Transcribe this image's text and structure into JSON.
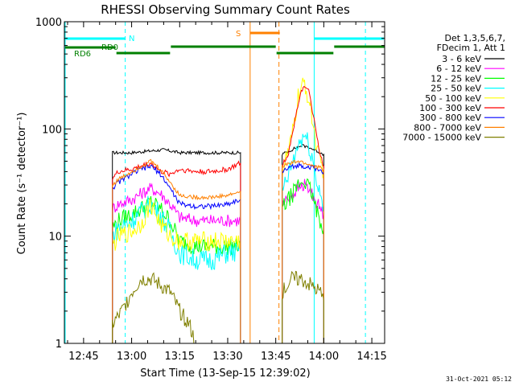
{
  "chart_data": {
    "type": "line",
    "title": "RHESSI Observing Summary Count Rates",
    "xlabel": "Start Time (13-Sep-15 12:39:02)",
    "ylabel": "Count Rate (s⁻¹ detector⁻¹)",
    "y_scale": "log",
    "ylim": [
      1,
      1000
    ],
    "xlim": [
      "12:39",
      "14:19"
    ],
    "x_ticks": [
      "12:45",
      "13:00",
      "13:15",
      "13:30",
      "13:45",
      "14:00",
      "14:15"
    ],
    "y_ticks": [
      "1",
      "10",
      "100",
      "1000"
    ],
    "legend_position": "top-right",
    "legend_header": [
      "Det 1,3,5,6,7,",
      "FDecim 1, Att 1"
    ],
    "generated": "31-Oct-2021 05:12",
    "series": [
      {
        "name": "3 - 6 keV",
        "color": "#000000",
        "x": [
          "12:54",
          "12:55",
          "13:00",
          "13:05",
          "13:10",
          "13:15",
          "13:20",
          "13:25",
          "13:30",
          "13:34"
        ],
        "y": [
          60,
          60,
          60,
          62,
          64,
          60,
          60,
          60,
          60,
          60
        ],
        "x2": [
          "13:47",
          "13:49",
          "13:51",
          "13:53",
          "13:55",
          "13:57",
          "13:59",
          "14:00"
        ],
        "y2": [
          58,
          62,
          66,
          70,
          68,
          64,
          60,
          58
        ]
      },
      {
        "name": "6 - 12 keV",
        "color": "#ff00ff",
        "x": [
          "12:54",
          "12:56",
          "13:00",
          "13:03",
          "13:06",
          "13:09",
          "13:12",
          "13:15",
          "13:20",
          "13:25",
          "13:30",
          "13:34"
        ],
        "y": [
          18,
          20,
          22,
          25,
          28,
          25,
          20,
          15,
          14,
          14,
          14,
          14
        ],
        "x2": [
          "13:47",
          "13:50",
          "13:52",
          "13:54",
          "13:56",
          "13:58",
          "14:00"
        ],
        "y2": [
          20,
          24,
          28,
          30,
          26,
          20,
          16
        ]
      },
      {
        "name": "12 - 25 keV",
        "color": "#00ff00",
        "x": [
          "12:54",
          "12:56",
          "13:00",
          "13:03",
          "13:06",
          "13:09",
          "13:12",
          "13:15",
          "13:20",
          "13:25",
          "13:30",
          "13:34"
        ],
        "y": [
          12,
          14,
          16,
          18,
          21,
          18,
          14,
          9,
          8,
          8,
          8,
          8
        ],
        "x2": [
          "13:47",
          "13:50",
          "13:52",
          "13:54",
          "13:56",
          "13:58",
          "14:00"
        ],
        "y2": [
          18,
          24,
          30,
          33,
          26,
          16,
          12
        ]
      },
      {
        "name": "25 - 50 keV",
        "color": "#00ffff",
        "x": [
          "12:54",
          "12:56",
          "13:00",
          "13:03",
          "13:06",
          "13:09",
          "13:12",
          "13:15",
          "13:20",
          "13:25",
          "13:30",
          "13:34"
        ],
        "y": [
          10,
          12,
          14,
          17,
          20,
          16,
          11,
          7,
          6,
          6,
          7,
          7
        ],
        "x2": [
          "13:47",
          "13:50",
          "13:52",
          "13:54",
          "13:56",
          "13:58",
          "14:00"
        ],
        "y2": [
          25,
          45,
          70,
          88,
          60,
          30,
          20
        ]
      },
      {
        "name": "50 - 100 keV",
        "color": "#ffff00",
        "x": [
          "12:54",
          "12:56",
          "13:00",
          "13:03",
          "13:06",
          "13:09",
          "13:12",
          "13:15",
          "13:20",
          "13:25",
          "13:30",
          "13:34"
        ],
        "y": [
          8,
          10,
          11,
          13,
          20,
          13,
          10,
          9,
          9,
          9,
          9,
          9
        ],
        "x2": [
          "13:47",
          "13:50",
          "13:52",
          "13:54",
          "13:56",
          "13:58",
          "14:00"
        ],
        "y2": [
          40,
          80,
          200,
          270,
          150,
          60,
          40
        ]
      },
      {
        "name": "100 - 300 keV",
        "color": "#ff0000",
        "x": [
          "12:54",
          "12:56",
          "13:00",
          "13:03",
          "13:06",
          "13:09",
          "13:12",
          "13:15",
          "13:20",
          "13:25",
          "13:30",
          "13:34"
        ],
        "y": [
          35,
          40,
          42,
          45,
          48,
          40,
          38,
          42,
          40,
          40,
          42,
          48
        ],
        "x2": [
          "13:47",
          "13:49",
          "13:51",
          "13:53",
          "13:55",
          "13:57",
          "13:59",
          "14:00"
        ],
        "y2": [
          45,
          60,
          120,
          230,
          250,
          120,
          55,
          45
        ]
      },
      {
        "name": "300 - 800 keV",
        "color": "#0000ff",
        "x": [
          "12:54",
          "12:56",
          "13:00",
          "13:03",
          "13:06",
          "13:09",
          "13:12",
          "13:15",
          "13:20",
          "13:25",
          "13:30",
          "13:34"
        ],
        "y": [
          28,
          32,
          38,
          42,
          45,
          38,
          28,
          20,
          19,
          19,
          20,
          22
        ],
        "x2": [
          "13:47",
          "13:50",
          "13:52",
          "13:54",
          "13:56",
          "13:58",
          "14:00"
        ],
        "y2": [
          40,
          44,
          46,
          45,
          44,
          42,
          40
        ]
      },
      {
        "name": "800 - 7000 keV",
        "color": "#ff8000",
        "x": [
          "12:54",
          "12:56",
          "13:00",
          "13:03",
          "13:06",
          "13:09",
          "13:12",
          "13:15",
          "13:20",
          "13:25",
          "13:30",
          "13:34"
        ],
        "y": [
          30,
          34,
          40,
          45,
          50,
          42,
          32,
          24,
          23,
          23,
          24,
          26
        ],
        "x2": [
          "13:47",
          "13:50",
          "13:52",
          "13:54",
          "13:56",
          "13:58",
          "14:00"
        ],
        "y2": [
          45,
          48,
          50,
          48,
          46,
          44,
          42
        ]
      },
      {
        "name": "7000 - 15000 keV",
        "color": "#808000",
        "x": [
          "12:54",
          "12:57",
          "13:00",
          "13:03",
          "13:06",
          "13:09",
          "13:12",
          "13:15",
          "13:18",
          "13:20"
        ],
        "y": [
          1.5,
          2,
          3,
          4,
          4,
          3.5,
          3,
          2,
          1.5,
          1
        ],
        "x2": [
          "13:47",
          "13:50",
          "13:53",
          "13:56",
          "13:59",
          "14:00"
        ],
        "y2": [
          3,
          4,
          4,
          3.5,
          3,
          2.5
        ]
      }
    ],
    "markers": [
      {
        "label": "N",
        "color": "#00ffff",
        "x": [
          "12:58",
          "14:13"
        ]
      },
      {
        "label": "S",
        "color": "#ff8000",
        "x": [
          "13:37",
          "13:46"
        ]
      }
    ],
    "flag_labels": [
      "RD0",
      "RD6"
    ]
  }
}
